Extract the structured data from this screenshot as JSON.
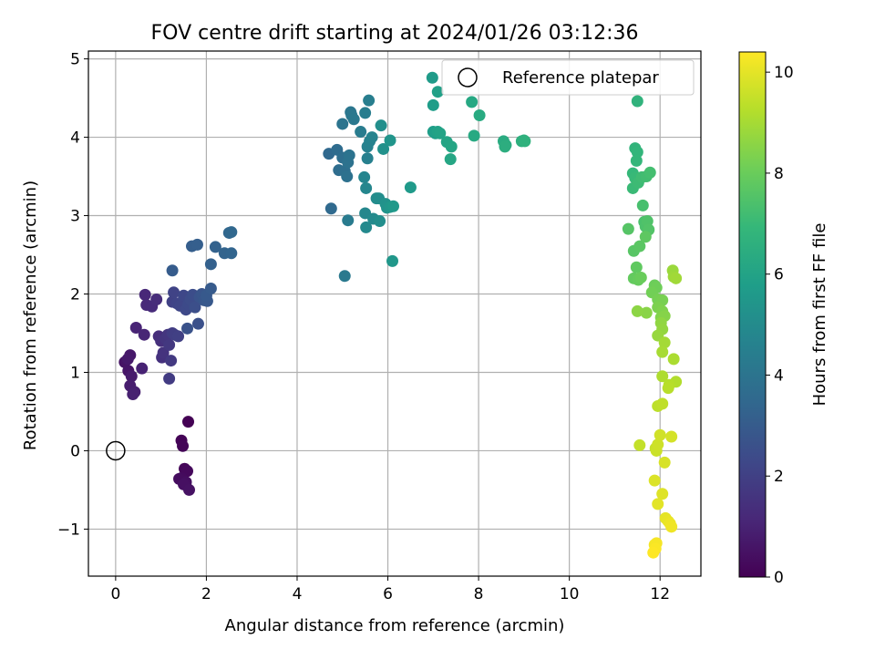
{
  "chart_data": {
    "type": "scatter",
    "title": "FOV centre drift starting at 2024/01/26 03:12:36",
    "xlabel": "Angular distance from reference (arcmin)",
    "ylabel": "Rotation from reference (arcmin)",
    "xlim": [
      -0.6,
      12.9
    ],
    "ylim": [
      -1.6,
      5.1
    ],
    "xticks": [
      0,
      2,
      4,
      6,
      8,
      10,
      12
    ],
    "yticks": [
      -1,
      0,
      1,
      2,
      3,
      4,
      5
    ],
    "xtick_labels": [
      "0",
      "2",
      "4",
      "6",
      "8",
      "10",
      "12"
    ],
    "ytick_labels": [
      "−1",
      "0",
      "1",
      "2",
      "3",
      "4",
      "5"
    ],
    "grid": true,
    "legend": {
      "placement": "top-right",
      "entries": [
        "Reference platepar"
      ]
    },
    "colorbar": {
      "label": "Hours from first FF file",
      "colormap": "viridis",
      "range": [
        0,
        10.4
      ],
      "ticks": [
        0,
        2,
        4,
        6,
        8,
        10
      ],
      "tick_labels": [
        "0",
        "2",
        "4",
        "6",
        "8",
        "10"
      ]
    },
    "reference_point": {
      "x": 0,
      "y": 0
    },
    "colors": {
      "viridis": [
        "#440154",
        "#482878",
        "#3e4989",
        "#31688e",
        "#26828e",
        "#1f9e89",
        "#35b779",
        "#6ece58",
        "#b5de2b",
        "#fde725"
      ]
    },
    "series": [
      {
        "points": [
          [
            1.6,
            0.37
          ],
          [
            1.45,
            0.13
          ],
          [
            1.48,
            0.06
          ],
          [
            1.52,
            -0.23
          ],
          [
            1.58,
            -0.26
          ],
          [
            1.45,
            -0.35
          ],
          [
            1.4,
            -0.36
          ],
          [
            1.55,
            -0.4
          ],
          [
            1.5,
            -0.43
          ],
          [
            1.62,
            -0.5
          ],
          [
            0.2,
            1.13
          ],
          [
            0.28,
            1.02
          ],
          [
            0.32,
            1.22
          ],
          [
            0.27,
            1.17
          ],
          [
            0.35,
            0.95
          ],
          [
            0.32,
            0.83
          ],
          [
            0.42,
            0.75
          ],
          [
            0.38,
            0.72
          ],
          [
            0.58,
            1.05
          ],
          [
            0.45,
            1.57
          ],
          [
            0.63,
            1.48
          ],
          [
            0.65,
            1.99
          ],
          [
            0.68,
            1.86
          ],
          [
            0.8,
            1.84
          ],
          [
            0.9,
            1.93
          ],
          [
            0.95,
            1.46
          ],
          [
            1.0,
            1.4
          ],
          [
            1.02,
            1.19
          ],
          [
            1.05,
            1.25
          ],
          [
            1.1,
            1.43
          ],
          [
            1.15,
            1.48
          ],
          [
            1.18,
            1.35
          ],
          [
            1.22,
            1.15
          ],
          [
            1.18,
            0.92
          ],
          [
            1.25,
            1.5
          ],
          [
            1.3,
            1.48
          ],
          [
            1.38,
            1.46
          ],
          [
            1.25,
            1.9
          ],
          [
            1.28,
            2.02
          ],
          [
            1.35,
            1.88
          ],
          [
            1.42,
            1.85
          ],
          [
            1.5,
            1.98
          ],
          [
            1.55,
            1.8
          ],
          [
            1.6,
            1.87
          ],
          [
            1.65,
            1.93
          ],
          [
            1.7,
            1.99
          ],
          [
            1.75,
            1.83
          ],
          [
            1.82,
            1.62
          ],
          [
            1.58,
            1.56
          ],
          [
            1.85,
            1.96
          ],
          [
            1.9,
            2.0
          ],
          [
            1.95,
            1.92
          ],
          [
            2.02,
            1.91
          ],
          [
            2.0,
            1.98
          ],
          [
            2.1,
            2.07
          ],
          [
            1.25,
            2.3
          ],
          [
            1.68,
            2.61
          ],
          [
            1.8,
            2.63
          ],
          [
            2.1,
            2.38
          ],
          [
            2.2,
            2.6
          ],
          [
            2.4,
            2.52
          ],
          [
            2.55,
            2.52
          ],
          [
            2.5,
            2.78
          ],
          [
            2.55,
            2.79
          ],
          [
            4.7,
            3.79
          ],
          [
            4.75,
            3.09
          ],
          [
            4.88,
            3.84
          ],
          [
            4.92,
            3.58
          ],
          [
            5.0,
            3.74
          ],
          [
            5.05,
            3.57
          ],
          [
            5.1,
            3.5
          ],
          [
            5.12,
            3.68
          ],
          [
            5.15,
            3.77
          ],
          [
            5.0,
            4.17
          ],
          [
            5.18,
            4.32
          ],
          [
            5.2,
            4.28
          ],
          [
            5.25,
            4.23
          ],
          [
            5.05,
            2.23
          ],
          [
            5.12,
            2.94
          ],
          [
            5.4,
            4.07
          ],
          [
            5.5,
            4.31
          ],
          [
            5.58,
            4.47
          ],
          [
            5.55,
            3.73
          ],
          [
            5.55,
            3.88
          ],
          [
            5.6,
            3.95
          ],
          [
            5.65,
            4.0
          ],
          [
            5.48,
            3.49
          ],
          [
            5.52,
            3.35
          ],
          [
            5.5,
            3.03
          ],
          [
            5.52,
            2.85
          ],
          [
            5.68,
            2.96
          ],
          [
            5.75,
            3.22
          ],
          [
            5.8,
            3.22
          ],
          [
            5.82,
            2.93
          ],
          [
            5.85,
            4.15
          ],
          [
            5.9,
            3.85
          ],
          [
            5.95,
            3.15
          ],
          [
            5.98,
            3.1
          ],
          [
            6.05,
            3.96
          ],
          [
            6.05,
            3.11
          ],
          [
            6.1,
            2.42
          ],
          [
            6.12,
            3.12
          ],
          [
            6.5,
            3.36
          ],
          [
            6.98,
            4.76
          ],
          [
            7.0,
            4.41
          ],
          [
            7.0,
            4.07
          ],
          [
            7.05,
            4.05
          ],
          [
            7.1,
            4.58
          ],
          [
            7.1,
            4.07
          ],
          [
            7.15,
            4.05
          ],
          [
            7.3,
            3.94
          ],
          [
            7.4,
            3.88
          ],
          [
            7.38,
            3.72
          ],
          [
            7.85,
            4.45
          ],
          [
            7.9,
            4.02
          ],
          [
            8.02,
            4.28
          ],
          [
            8.55,
            3.95
          ],
          [
            8.6,
            3.9
          ],
          [
            8.58,
            3.88
          ],
          [
            8.95,
            3.95
          ],
          [
            9.0,
            3.96
          ],
          [
            9.02,
            3.95
          ],
          [
            11.5,
            4.46
          ],
          [
            11.45,
            3.86
          ],
          [
            11.5,
            3.81
          ],
          [
            11.48,
            3.7
          ],
          [
            11.4,
            3.54
          ],
          [
            11.45,
            3.48
          ],
          [
            11.4,
            3.35
          ],
          [
            11.52,
            3.42
          ],
          [
            11.6,
            3.49
          ],
          [
            11.7,
            3.5
          ],
          [
            11.78,
            3.55
          ],
          [
            11.62,
            3.13
          ],
          [
            11.65,
            2.92
          ],
          [
            11.68,
            2.86
          ],
          [
            11.72,
            2.93
          ],
          [
            11.75,
            2.82
          ],
          [
            11.3,
            2.83
          ],
          [
            11.42,
            2.55
          ],
          [
            11.55,
            2.61
          ],
          [
            11.68,
            2.73
          ],
          [
            11.48,
            2.34
          ],
          [
            11.42,
            2.2
          ],
          [
            11.52,
            2.18
          ],
          [
            11.58,
            2.21
          ],
          [
            11.88,
            2.11
          ],
          [
            11.92,
            2.08
          ],
          [
            11.82,
            2.02
          ],
          [
            11.95,
            1.93
          ],
          [
            12.05,
            1.92
          ],
          [
            11.95,
            1.83
          ],
          [
            12.05,
            1.78
          ],
          [
            12.02,
            1.7
          ],
          [
            12.1,
            1.72
          ],
          [
            11.7,
            1.76
          ],
          [
            11.5,
            1.78
          ],
          [
            12.02,
            1.63
          ],
          [
            12.05,
            1.55
          ],
          [
            11.95,
            1.47
          ],
          [
            12.28,
            2.3
          ],
          [
            12.3,
            2.22
          ],
          [
            12.35,
            2.2
          ],
          [
            12.1,
            1.38
          ],
          [
            12.05,
            1.26
          ],
          [
            12.3,
            1.17
          ],
          [
            12.05,
            0.95
          ],
          [
            12.35,
            0.88
          ],
          [
            12.2,
            0.84
          ],
          [
            12.18,
            0.8
          ],
          [
            11.95,
            0.57
          ],
          [
            12.05,
            0.6
          ],
          [
            11.55,
            0.07
          ],
          [
            11.9,
            0.03
          ],
          [
            11.92,
            0.0
          ],
          [
            11.95,
            0.08
          ],
          [
            12.0,
            0.2
          ],
          [
            12.25,
            0.18
          ],
          [
            12.1,
            -0.15
          ],
          [
            11.88,
            -0.38
          ],
          [
            12.05,
            -0.55
          ],
          [
            11.95,
            -0.68
          ],
          [
            12.12,
            -0.86
          ],
          [
            12.18,
            -0.9
          ],
          [
            12.22,
            -0.93
          ],
          [
            12.25,
            -0.97
          ],
          [
            11.88,
            -1.2
          ],
          [
            11.92,
            -1.18
          ],
          [
            11.9,
            -1.25
          ],
          [
            11.85,
            -1.3
          ]
        ]
      }
    ]
  }
}
